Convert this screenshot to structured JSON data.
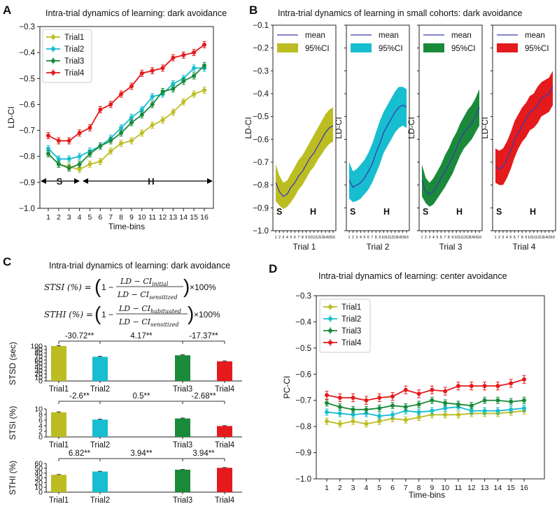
{
  "panels": {
    "A": {
      "letter": "A",
      "title": "Intra-trial dynamics of learning: dark avoidance",
      "ylabel": "LD-CI",
      "xlabel": "Time-bins"
    },
    "B": {
      "letter": "B",
      "title": "Intra-trial dynamics of learning in small cohorts: dark avoidance",
      "mean_label": "mean",
      "ci_label": "95%CI"
    },
    "C": {
      "letter": "C",
      "title": "Intra-trial dynamics of learning: dark avoidance"
    },
    "D": {
      "letter": "D",
      "title": "Intra-trial dynamics of learning: center avoidance",
      "ylabel": "PC-CI",
      "xlabel": "Time-bins"
    }
  },
  "colors": {
    "Trial1": "#bcbd22",
    "Trial2": "#17becf",
    "Trial3": "#1a8a3a",
    "Trial4": "#e41a1c",
    "mean": "#3b3bb0"
  },
  "formulas": {
    "stsi_lhs": "STSI (%) =",
    "stsi_num": "LD − CI",
    "stsi_num_sub": "initial",
    "stsi_den": "LD − CI",
    "stsi_den_sub": "sensitized",
    "sthi_lhs": "STHI (%) =",
    "sthi_num": "LD − CI",
    "sthi_num_sub": "habituated",
    "sthi_den": "LD − CI",
    "sthi_den_sub": "sensitized",
    "one_minus": "1 −",
    "times": "×100%"
  },
  "chart_data": [
    {
      "id": "A",
      "type": "line",
      "title": "Intra-trial dynamics of learning: dark avoidance",
      "xlabel": "Time-bins",
      "ylabel": "LD-CI",
      "x": [
        1,
        2,
        3,
        4,
        5,
        6,
        7,
        8,
        9,
        10,
        11,
        12,
        13,
        14,
        15,
        16
      ],
      "ylim": [
        -1.0,
        -0.3
      ],
      "yticks": [
        -1.0,
        -0.9,
        -0.8,
        -0.7,
        -0.6,
        -0.5,
        -0.4,
        -0.3
      ],
      "ytick_labels": [
        "−1.0",
        "−0.9",
        "−0.8",
        "−0.7",
        "−0.6",
        "−0.5",
        "−0.4",
        "−0.3"
      ],
      "legend": "top-left",
      "series": [
        {
          "name": "Trial1",
          "values": [
            -0.79,
            -0.83,
            -0.84,
            -0.85,
            -0.83,
            -0.82,
            -0.78,
            -0.75,
            -0.74,
            -0.71,
            -0.68,
            -0.66,
            -0.63,
            -0.59,
            -0.56,
            -0.545
          ],
          "err": 0.012
        },
        {
          "name": "Trial2",
          "values": [
            -0.77,
            -0.81,
            -0.81,
            -0.8,
            -0.78,
            -0.76,
            -0.73,
            -0.69,
            -0.65,
            -0.62,
            -0.57,
            -0.56,
            -0.52,
            -0.5,
            -0.46,
            -0.46
          ],
          "err": 0.012
        },
        {
          "name": "Trial3",
          "values": [
            -0.79,
            -0.83,
            -0.845,
            -0.83,
            -0.79,
            -0.76,
            -0.74,
            -0.71,
            -0.67,
            -0.64,
            -0.6,
            -0.55,
            -0.54,
            -0.51,
            -0.49,
            -0.45
          ],
          "err": 0.012
        },
        {
          "name": "Trial4",
          "values": [
            -0.72,
            -0.74,
            -0.74,
            -0.71,
            -0.69,
            -0.62,
            -0.6,
            -0.56,
            -0.53,
            -0.48,
            -0.47,
            -0.46,
            -0.42,
            -0.41,
            -0.4,
            -0.37
          ],
          "err": 0.012
        }
      ],
      "annotations": {
        "S": "S",
        "H": "H"
      },
      "xtick_labels": [
        "1",
        "2",
        "3",
        "4",
        "5",
        "6",
        "7",
        "8",
        "9",
        "10",
        "11",
        "12",
        "13",
        "14",
        "15",
        "16"
      ]
    },
    {
      "id": "B",
      "type": "area",
      "title": "Intra-trial dynamics of learning in small cohorts: dark avoidance",
      "ylabel": "LD-CI",
      "ylim": [
        -1.0,
        -0.1
      ],
      "yticks": [
        -1.0,
        -0.9,
        -0.8,
        -0.7,
        -0.6,
        -0.5,
        -0.4,
        -0.3,
        -0.2,
        -0.1
      ],
      "ytick_labels": [
        "−1.0",
        "−0.9",
        "−0.8",
        "−0.7",
        "−0.6",
        "−0.5",
        "−0.4",
        "−0.3",
        "−0.2",
        "−0.1"
      ],
      "xtick_labels": [
        "1",
        "2",
        "3",
        "4",
        "5",
        "6",
        "7",
        "8",
        "9",
        "10",
        "11",
        "12",
        "13",
        "14",
        "15",
        "16"
      ],
      "annotations": {
        "S": "S",
        "H": "H"
      },
      "series": [
        {
          "name": "Trial 1",
          "mean": [
            -0.79,
            -0.83,
            -0.85,
            -0.84,
            -0.81,
            -0.79,
            -0.76,
            -0.74,
            -0.71,
            -0.68,
            -0.66,
            -0.63,
            -0.6,
            -0.57,
            -0.55,
            -0.54
          ],
          "lower": [
            -0.87,
            -0.89,
            -0.905,
            -0.895,
            -0.875,
            -0.85,
            -0.82,
            -0.8,
            -0.77,
            -0.74,
            -0.72,
            -0.69,
            -0.665,
            -0.64,
            -0.62,
            -0.61
          ],
          "upper": [
            -0.71,
            -0.76,
            -0.79,
            -0.78,
            -0.75,
            -0.72,
            -0.69,
            -0.67,
            -0.64,
            -0.61,
            -0.58,
            -0.55,
            -0.52,
            -0.49,
            -0.47,
            -0.46
          ]
        },
        {
          "name": "Trial 2",
          "mean": [
            -0.78,
            -0.81,
            -0.8,
            -0.79,
            -0.77,
            -0.74,
            -0.71,
            -0.66,
            -0.62,
            -0.57,
            -0.54,
            -0.51,
            -0.48,
            -0.46,
            -0.45,
            -0.46
          ],
          "lower": [
            -0.86,
            -0.875,
            -0.87,
            -0.86,
            -0.84,
            -0.82,
            -0.79,
            -0.75,
            -0.71,
            -0.66,
            -0.63,
            -0.6,
            -0.57,
            -0.55,
            -0.54,
            -0.55
          ],
          "upper": [
            -0.7,
            -0.74,
            -0.73,
            -0.71,
            -0.69,
            -0.66,
            -0.62,
            -0.57,
            -0.52,
            -0.48,
            -0.45,
            -0.42,
            -0.39,
            -0.37,
            -0.37,
            -0.38
          ]
        },
        {
          "name": "Trial 3",
          "mean": [
            -0.78,
            -0.83,
            -0.84,
            -0.83,
            -0.8,
            -0.77,
            -0.74,
            -0.71,
            -0.68,
            -0.64,
            -0.6,
            -0.57,
            -0.55,
            -0.53,
            -0.5,
            -0.46
          ],
          "lower": [
            -0.85,
            -0.88,
            -0.895,
            -0.885,
            -0.86,
            -0.835,
            -0.81,
            -0.78,
            -0.75,
            -0.71,
            -0.67,
            -0.64,
            -0.62,
            -0.6,
            -0.57,
            -0.54
          ],
          "upper": [
            -0.71,
            -0.77,
            -0.79,
            -0.77,
            -0.74,
            -0.71,
            -0.67,
            -0.64,
            -0.6,
            -0.57,
            -0.53,
            -0.5,
            -0.47,
            -0.45,
            -0.42,
            -0.38
          ]
        },
        {
          "name": "Trial 4",
          "mean": [
            -0.72,
            -0.73,
            -0.72,
            -0.69,
            -0.65,
            -0.6,
            -0.57,
            -0.54,
            -0.51,
            -0.48,
            -0.47,
            -0.45,
            -0.42,
            -0.41,
            -0.4,
            -0.37
          ],
          "lower": [
            -0.79,
            -0.8,
            -0.8,
            -0.77,
            -0.73,
            -0.68,
            -0.64,
            -0.61,
            -0.59,
            -0.56,
            -0.55,
            -0.53,
            -0.5,
            -0.49,
            -0.48,
            -0.45
          ],
          "upper": [
            -0.64,
            -0.65,
            -0.64,
            -0.61,
            -0.57,
            -0.52,
            -0.49,
            -0.46,
            -0.44,
            -0.41,
            -0.4,
            -0.37,
            -0.35,
            -0.34,
            -0.33,
            -0.3
          ]
        }
      ]
    },
    {
      "id": "C",
      "type": "bar",
      "title": "Intra-trial dynamics of learning: dark avoidance",
      "categories": [
        "Trial1",
        "Trial2",
        "Trial3",
        "Trial4"
      ],
      "subplots": [
        {
          "ylabel": "STSD (sec)",
          "ylim": [
            0,
            100
          ],
          "yticks": [
            0,
            10,
            20,
            30,
            40,
            50,
            60,
            70,
            80,
            90,
            100
          ],
          "values": [
            100,
            69.3,
            73.5,
            56.1
          ],
          "err": [
            1.5,
            1.5,
            1.5,
            1.5
          ],
          "comparisons": [
            "-30.72**",
            "4.17**",
            "-17.37**"
          ]
        },
        {
          "ylabel": "STSI (%)",
          "ylim": [
            0,
            10
          ],
          "yticks": [
            0,
            2,
            4,
            6,
            8,
            10
          ],
          "values": [
            8.8,
            6.2,
            6.6,
            3.9
          ],
          "err": [
            0.15,
            0.15,
            0.15,
            0.15
          ],
          "comparisons": [
            "-2.6**",
            "0.5**",
            "-2.68**"
          ]
        },
        {
          "ylabel": "STHI (%)",
          "ylim": [
            0,
            60
          ],
          "yticks": [
            0,
            10,
            20,
            30,
            40,
            50,
            60
          ],
          "values": [
            36.3,
            43.1,
            47.0,
            50.9
          ],
          "err": [
            0.6,
            0.6,
            0.6,
            0.6
          ],
          "comparisons": [
            "6.82**",
            "3.94**",
            "3.94**"
          ]
        }
      ]
    },
    {
      "id": "D",
      "type": "line",
      "title": "Intra-trial dynamics of learning: center avoidance",
      "xlabel": "Time-bins",
      "ylabel": "PC-CI",
      "x": [
        1,
        2,
        3,
        4,
        5,
        6,
        7,
        8,
        9,
        10,
        11,
        12,
        13,
        14,
        15,
        16
      ],
      "ylim": [
        -1.0,
        -0.3
      ],
      "yticks": [
        -1.0,
        -0.9,
        -0.8,
        -0.7,
        -0.6,
        -0.5,
        -0.4,
        -0.3
      ],
      "ytick_labels": [
        "−1.0",
        "−0.9",
        "−0.8",
        "−0.7",
        "−0.6",
        "−0.5",
        "−0.4",
        "−0.3"
      ],
      "legend": "top-left",
      "series": [
        {
          "name": "Trial1",
          "values": [
            -0.78,
            -0.79,
            -0.78,
            -0.79,
            -0.78,
            -0.77,
            -0.775,
            -0.765,
            -0.755,
            -0.755,
            -0.755,
            -0.75,
            -0.75,
            -0.75,
            -0.745,
            -0.74
          ],
          "err": 0.012
        },
        {
          "name": "Trial2",
          "values": [
            -0.745,
            -0.75,
            -0.755,
            -0.75,
            -0.76,
            -0.755,
            -0.74,
            -0.745,
            -0.74,
            -0.73,
            -0.725,
            -0.74,
            -0.74,
            -0.74,
            -0.735,
            -0.73
          ],
          "err": 0.012
        },
        {
          "name": "Trial3",
          "values": [
            -0.71,
            -0.725,
            -0.735,
            -0.735,
            -0.73,
            -0.72,
            -0.725,
            -0.715,
            -0.7,
            -0.71,
            -0.715,
            -0.72,
            -0.7,
            -0.7,
            -0.705,
            -0.7
          ],
          "err": 0.012
        },
        {
          "name": "Trial4",
          "values": [
            -0.68,
            -0.69,
            -0.69,
            -0.7,
            -0.69,
            -0.685,
            -0.66,
            -0.675,
            -0.66,
            -0.665,
            -0.645,
            -0.645,
            -0.645,
            -0.645,
            -0.635,
            -0.62
          ],
          "err": 0.015
        }
      ],
      "xtick_labels": [
        "1",
        "2",
        "3",
        "4",
        "5",
        "6",
        "7",
        "8",
        "9",
        "10",
        "11",
        "12",
        "13",
        "14",
        "15",
        "16"
      ]
    }
  ]
}
